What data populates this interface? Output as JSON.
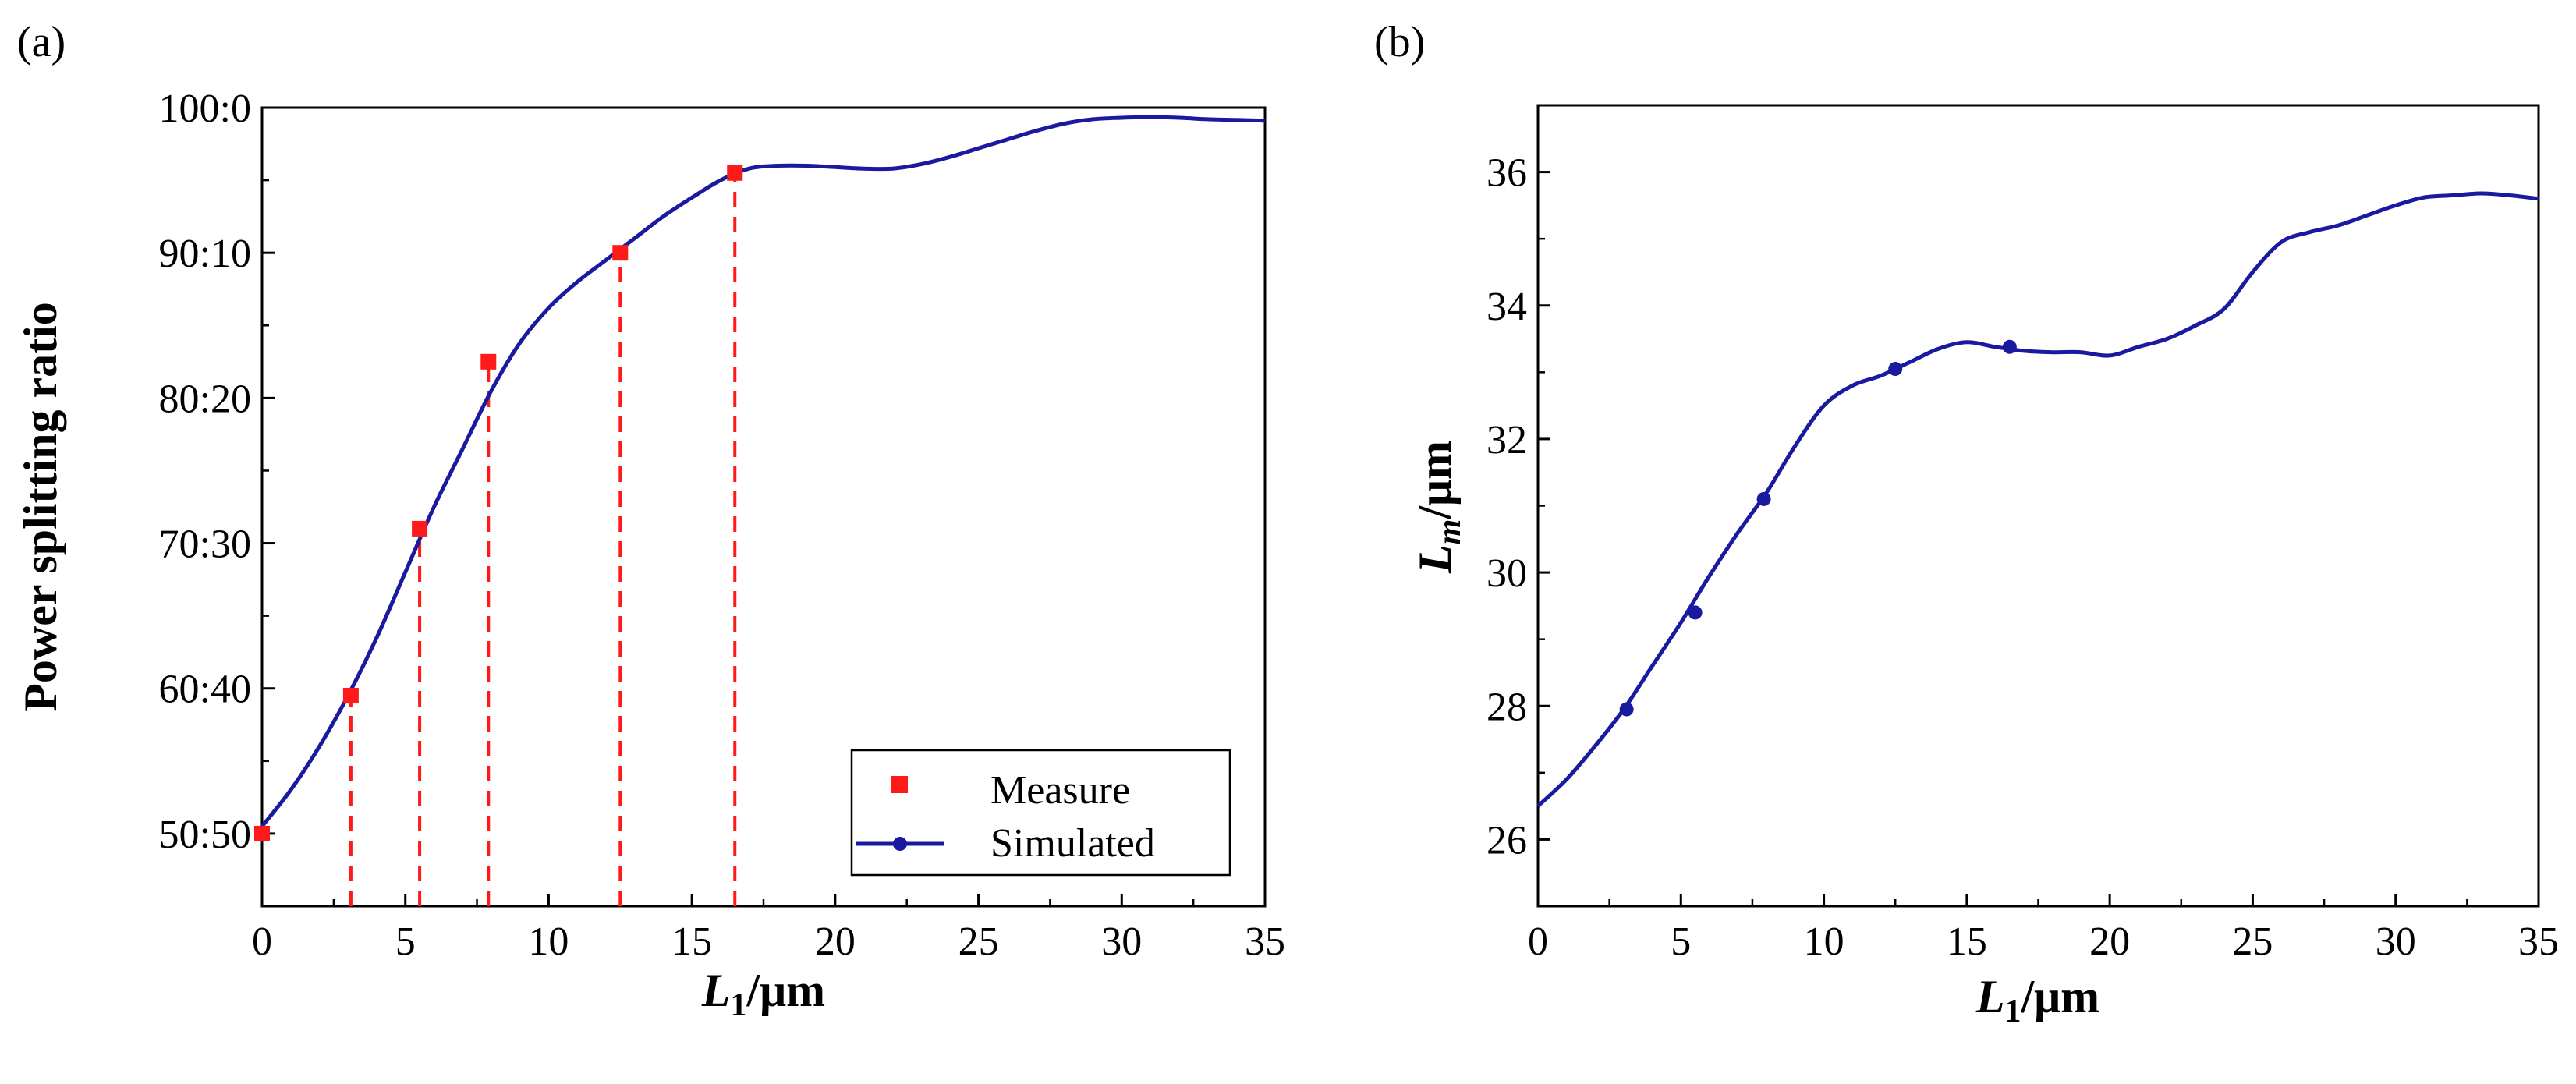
{
  "colors": {
    "simulated": "#1a1aa0",
    "measure": "#ff1a1a",
    "axis": "#000000"
  },
  "chart_data": [
    {
      "panel_label": "(a)",
      "type": "line",
      "xlabel_main": "L",
      "xlabel_sub": "1",
      "xlabel_unit": "/μm",
      "ylabel": "Power splitting ratio",
      "xlim": [
        0,
        35
      ],
      "ylim": [
        45,
        100
      ],
      "x_ticks": [
        0,
        5,
        10,
        15,
        20,
        25,
        30,
        35
      ],
      "x_tick_labels": [
        "0",
        "5",
        "10",
        "15",
        "20",
        "25",
        "30",
        "35"
      ],
      "y_ticks": [
        50,
        60,
        70,
        80,
        90,
        100
      ],
      "y_tick_labels": [
        "50:50",
        "60:40",
        "70:30",
        "80:20",
        "90:10",
        "100:0"
      ],
      "legend": {
        "placement": "bottom-right",
        "entries": [
          {
            "label": "Measure",
            "marker": "square",
            "color": "#ff1a1a"
          },
          {
            "label": "Simulated",
            "marker": "line-dot",
            "color": "#1a1aa0"
          }
        ]
      },
      "series": [
        {
          "name": "Simulated",
          "x": [
            0,
            1,
            2,
            3,
            4,
            5,
            6,
            7,
            8,
            9,
            10,
            11,
            12,
            13,
            14,
            15,
            16,
            17,
            18,
            19,
            20,
            21,
            22,
            23,
            24,
            25,
            26,
            27,
            28,
            29,
            30,
            31,
            32,
            33,
            34,
            35
          ],
          "y": [
            50.5,
            53.0,
            56.0,
            59.5,
            63.5,
            68.0,
            72.5,
            76.5,
            80.5,
            83.8,
            86.2,
            88.0,
            89.5,
            91.0,
            92.5,
            93.8,
            95.0,
            95.8,
            96.0,
            96.0,
            95.9,
            95.8,
            95.8,
            96.1,
            96.6,
            97.2,
            97.8,
            98.4,
            98.9,
            99.2,
            99.3,
            99.35,
            99.3,
            99.2,
            99.15,
            99.1
          ]
        },
        {
          "name": "Measure",
          "x": [
            0,
            3.1,
            5.5,
            7.9,
            12.5,
            16.5
          ],
          "y": [
            50.0,
            59.5,
            71.0,
            82.5,
            90.0,
            95.5
          ]
        }
      ],
      "dashed_guides_x": [
        3.1,
        5.5,
        7.9,
        12.5,
        16.5
      ]
    },
    {
      "panel_label": "(b)",
      "type": "line",
      "xlabel_main": "L",
      "xlabel_sub": "1",
      "xlabel_unit": "/μm",
      "ylabel_main": "L",
      "ylabel_sub": "m",
      "ylabel_unit": "/μm",
      "xlim": [
        0,
        35
      ],
      "ylim": [
        25,
        37
      ],
      "x_ticks": [
        0,
        5,
        10,
        15,
        20,
        25,
        30,
        35
      ],
      "x_tick_labels": [
        "0",
        "5",
        "10",
        "15",
        "20",
        "25",
        "30",
        "35"
      ],
      "y_ticks": [
        26,
        28,
        30,
        32,
        34,
        36
      ],
      "y_tick_labels": [
        "26",
        "28",
        "30",
        "32",
        "34",
        "36"
      ],
      "series": [
        {
          "name": "Lm",
          "x": [
            0,
            1,
            2,
            3,
            4,
            5,
            6,
            7,
            8,
            9,
            10,
            11,
            12,
            13,
            14,
            15,
            16,
            17,
            18,
            19,
            20,
            21,
            22,
            23,
            24,
            25,
            26,
            27,
            28,
            29,
            30,
            31,
            32,
            33,
            34,
            35
          ],
          "y": [
            26.5,
            26.9,
            27.4,
            27.95,
            28.6,
            29.25,
            29.95,
            30.6,
            31.2,
            31.9,
            32.5,
            32.8,
            32.95,
            33.15,
            33.35,
            33.45,
            33.38,
            33.32,
            33.3,
            33.3,
            33.25,
            33.38,
            33.5,
            33.7,
            33.95,
            34.5,
            34.95,
            35.1,
            35.2,
            35.35,
            35.5,
            35.62,
            35.65,
            35.68,
            35.65,
            35.6
          ]
        }
      ],
      "markers": {
        "x": [
          3.1,
          5.5,
          7.9,
          12.5,
          16.5
        ],
        "y": [
          27.95,
          29.4,
          31.1,
          33.05,
          33.38
        ]
      }
    }
  ]
}
